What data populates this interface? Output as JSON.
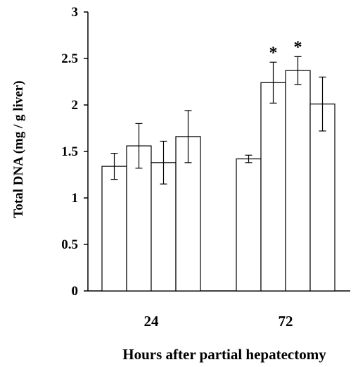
{
  "chart_data": {
    "type": "bar",
    "xlabel": "Hours after partial hepatectomy",
    "ylabel": "Total DNA (mg / g liver)",
    "ylim": [
      0,
      3
    ],
    "y_ticks": [
      "0",
      "0.5",
      "1",
      "1.5",
      "2",
      "2.5",
      "3"
    ],
    "y_tick_values": [
      0,
      0.5,
      1,
      1.5,
      2,
      2.5,
      3
    ],
    "groups": [
      {
        "label": "24",
        "bars": [
          {
            "value": 1.34,
            "err": 0.14,
            "sig": ""
          },
          {
            "value": 1.56,
            "err": 0.24,
            "sig": ""
          },
          {
            "value": 1.38,
            "err": 0.23,
            "sig": ""
          },
          {
            "value": 1.66,
            "err": 0.28,
            "sig": ""
          }
        ]
      },
      {
        "label": "72",
        "bars": [
          {
            "value": 1.42,
            "err": 0.04,
            "sig": ""
          },
          {
            "value": 2.24,
            "err": 0.22,
            "sig": "*"
          },
          {
            "value": 2.37,
            "err": 0.15,
            "sig": "*"
          },
          {
            "value": 2.01,
            "err": 0.29,
            "sig": ""
          }
        ]
      }
    ],
    "bar_fill": "#ffffff",
    "bar_stroke": "#000000"
  }
}
